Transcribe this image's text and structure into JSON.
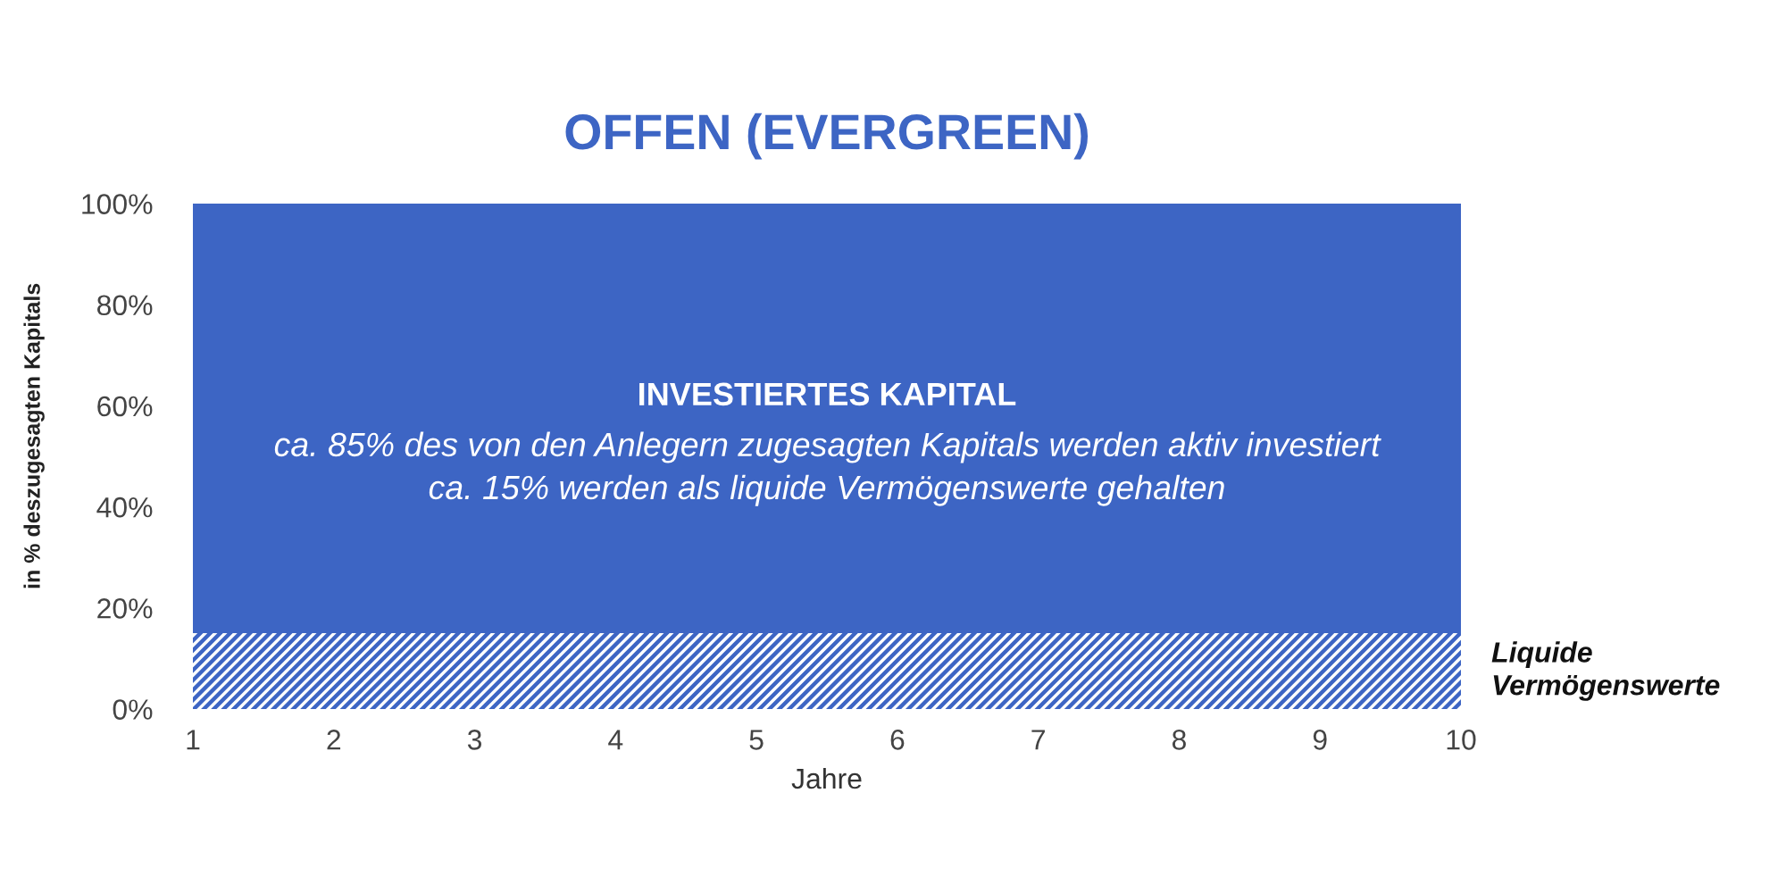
{
  "chart_data": {
    "type": "area",
    "title": "OFFEN (EVERGREEN)",
    "xlabel": "Jahre",
    "ylabel": "in % deszugesagten Kapitals",
    "annotations": [
      "ca. 85% des von den Anlegern zugesagten Kapitals werden aktiv investiert",
      "ca. 15% werden als liquide Vermögenswerte gehalten"
    ],
    "x": [
      1,
      10
    ],
    "stacked": true,
    "series": [
      {
        "name": "Liquide Vermögenswerte",
        "color": "#3d65c4",
        "values": [
          15,
          15
        ]
      },
      {
        "name": "INVESTIERTES KAPITAL",
        "color": "#3d65c4",
        "values": [
          85,
          85
        ]
      }
    ],
    "xlim": [
      1,
      10
    ],
    "ylim": [
      0,
      100
    ],
    "xticks": [
      1,
      2,
      3,
      4,
      5,
      6,
      7,
      8,
      9,
      10
    ],
    "yticks": [
      {
        "value": 0,
        "label": "0%"
      },
      {
        "value": 20,
        "label": "20%"
      },
      {
        "value": 40,
        "label": "40%"
      },
      {
        "value": 60,
        "label": "60%"
      },
      {
        "value": 80,
        "label": "80%"
      },
      {
        "value": 100,
        "label": "100%"
      }
    ],
    "legend": false
  }
}
